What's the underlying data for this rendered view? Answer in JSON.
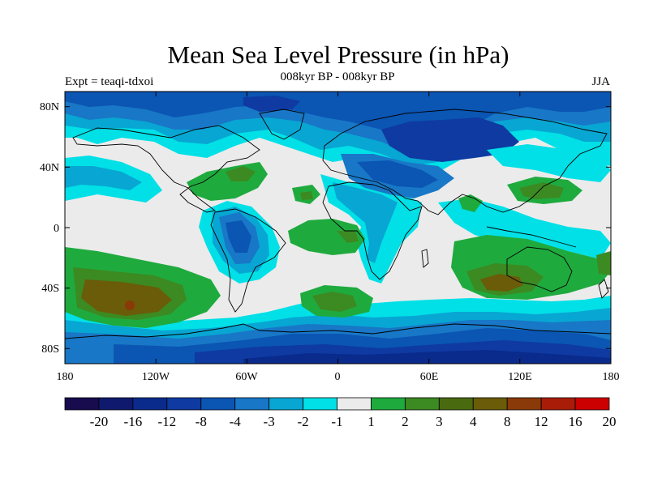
{
  "title": "Mean Sea Level Pressure (in hPa)",
  "subtitle": "008kyr BP - 008kyr BP",
  "left_label": "Expt = teaqi-tdxoi",
  "right_label": "JJA",
  "map": {
    "lat_ticks": [
      "80N",
      "40N",
      "0",
      "40S",
      "80S"
    ],
    "lon_ticks": [
      "180",
      "120W",
      "60W",
      "0",
      "60E",
      "120E",
      "180"
    ]
  },
  "colorbar": {
    "levels": [
      "-20",
      "-16",
      "-12",
      "-8",
      "-4",
      "-3",
      "-2",
      "-1",
      "1",
      "2",
      "3",
      "4",
      "8",
      "12",
      "16",
      "20"
    ],
    "colors": [
      "#180b4e",
      "#0f1a6e",
      "#0a2a8c",
      "#0e3aa2",
      "#0b55b3",
      "#1877c6",
      "#08a6d3",
      "#00e0e6",
      "#ebebeb",
      "#1faa3e",
      "#3c8a22",
      "#4a6a10",
      "#6a5c08",
      "#8a3a08",
      "#a81c08",
      "#cc0000"
    ]
  }
}
